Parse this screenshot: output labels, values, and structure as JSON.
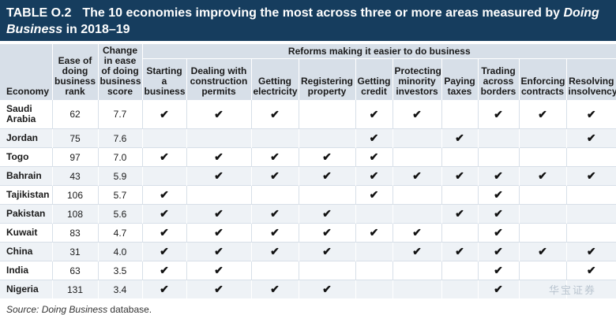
{
  "title": {
    "label": "TABLE O.2",
    "text_part1": "The 10 economies improving the most across three or more areas measured by ",
    "text_em": "Doing Business",
    "text_part2": " in 2018–19"
  },
  "headers": {
    "economy": "Economy",
    "rank": "Ease of doing business rank",
    "change": "Change in ease of doing business score",
    "reforms_group": "Reforms making it easier to do business",
    "reforms": [
      "Starting a business",
      "Dealing with construction permits",
      "Getting electricity",
      "Registering property",
      "Getting credit",
      "Protecting minority investors",
      "Paying taxes",
      "Trading across borders",
      "Enforcing contracts",
      "Resolving insolvency"
    ]
  },
  "check_symbol": "✔",
  "rows": [
    {
      "economy": "Saudi Arabia",
      "rank": "62",
      "change": "7.7",
      "marks": [
        1,
        1,
        1,
        0,
        1,
        1,
        0,
        1,
        1,
        1
      ]
    },
    {
      "economy": "Jordan",
      "rank": "75",
      "change": "7.6",
      "marks": [
        0,
        0,
        0,
        0,
        1,
        0,
        1,
        0,
        0,
        1
      ]
    },
    {
      "economy": "Togo",
      "rank": "97",
      "change": "7.0",
      "marks": [
        1,
        1,
        1,
        1,
        1,
        0,
        0,
        0,
        0,
        0
      ]
    },
    {
      "economy": "Bahrain",
      "rank": "43",
      "change": "5.9",
      "marks": [
        0,
        1,
        1,
        1,
        1,
        1,
        1,
        1,
        1,
        1
      ]
    },
    {
      "economy": "Tajikistan",
      "rank": "106",
      "change": "5.7",
      "marks": [
        1,
        0,
        0,
        0,
        1,
        0,
        0,
        1,
        0,
        0
      ]
    },
    {
      "economy": "Pakistan",
      "rank": "108",
      "change": "5.6",
      "marks": [
        1,
        1,
        1,
        1,
        0,
        0,
        1,
        1,
        0,
        0
      ]
    },
    {
      "economy": "Kuwait",
      "rank": "83",
      "change": "4.7",
      "marks": [
        1,
        1,
        1,
        1,
        1,
        1,
        0,
        1,
        0,
        0
      ]
    },
    {
      "economy": "China",
      "rank": "31",
      "change": "4.0",
      "marks": [
        1,
        1,
        1,
        1,
        0,
        1,
        1,
        1,
        1,
        1
      ]
    },
    {
      "economy": "India",
      "rank": "63",
      "change": "3.5",
      "marks": [
        1,
        1,
        0,
        0,
        0,
        0,
        0,
        1,
        0,
        1
      ]
    },
    {
      "economy": "Nigeria",
      "rank": "131",
      "change": "3.4",
      "marks": [
        1,
        1,
        1,
        1,
        0,
        0,
        0,
        1,
        0,
        0
      ]
    }
  ],
  "source": {
    "prefix": "Source: ",
    "em": "Doing Business",
    "suffix": " database."
  },
  "watermark": "华宝证券"
}
